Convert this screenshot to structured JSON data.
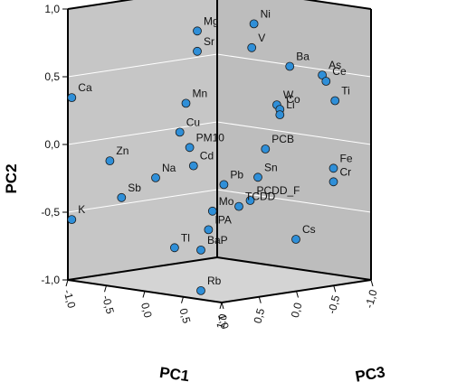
{
  "chart_data": {
    "type": "scatter",
    "projection": "3d",
    "axes": {
      "x": {
        "label": "PC1",
        "range": [
          -1,
          1
        ],
        "ticks": [
          "-1,0",
          "-0,5",
          "0,0",
          "0,5",
          "1,0"
        ]
      },
      "y": {
        "label": "PC2",
        "range": [
          -1,
          1
        ],
        "ticks": [
          "-1,0",
          "-0,5",
          "0,0",
          "0,5",
          "1,0"
        ]
      },
      "z": {
        "label": "PC3",
        "range": [
          -1,
          1
        ],
        "ticks": [
          "1,0",
          "0,5",
          "0,0",
          "-0,5",
          "-1,0"
        ]
      }
    },
    "grid": true,
    "colors": {
      "point": "#2f8fd8",
      "wall": "#c6c6c6",
      "wall_right": "#bdbdbd",
      "floor": "#d4d4d4",
      "gridline": "#ffffff"
    },
    "points": [
      {
        "label": "Mg",
        "pc1": 0.1,
        "pc2": 0.88,
        "pc3": 0.4
      },
      {
        "label": "Sr",
        "pc1": 0.1,
        "pc2": 0.73,
        "pc3": 0.4
      },
      {
        "label": "Ni",
        "pc1": 0.4,
        "pc2": 0.92,
        "pc3": -0.05
      },
      {
        "label": "V",
        "pc1": 0.42,
        "pc2": 0.75,
        "pc3": 0.0
      },
      {
        "label": "Ca",
        "pc1": -0.95,
        "pc2": 0.35,
        "pc3": 1.0
      },
      {
        "label": "Mn",
        "pc1": 0.05,
        "pc2": 0.35,
        "pc3": 0.5
      },
      {
        "label": "Ba",
        "pc1": 0.72,
        "pc2": 0.62,
        "pc3": -0.2
      },
      {
        "label": "As",
        "pc1": 0.9,
        "pc2": 0.55,
        "pc3": -0.45
      },
      {
        "label": "Cu",
        "pc1": -0.03,
        "pc2": 0.13,
        "pc3": 0.5
      },
      {
        "label": "Zn",
        "pc1": -0.6,
        "pc2": -0.1,
        "pc3": 0.85
      },
      {
        "label": "W",
        "pc1": 0.6,
        "pc2": 0.33,
        "pc3": -0.15
      },
      {
        "label": "Co",
        "pc1": 0.64,
        "pc2": 0.3,
        "pc3": -0.15
      },
      {
        "label": "Ce",
        "pc1": 0.9,
        "pc2": 0.5,
        "pc3": -0.5
      },
      {
        "label": "Li",
        "pc1": 0.64,
        "pc2": 0.26,
        "pc3": -0.15
      },
      {
        "label": "Ti",
        "pc1": 0.92,
        "pc2": 0.35,
        "pc3": -0.6
      },
      {
        "label": "PM10",
        "pc1": 0.05,
        "pc2": 0.02,
        "pc3": 0.45
      },
      {
        "label": "Na",
        "pc1": -0.15,
        "pc2": -0.2,
        "pc3": 0.7
      },
      {
        "label": "PCB",
        "pc1": 0.5,
        "pc2": 0.0,
        "pc3": -0.1
      },
      {
        "label": "K",
        "pc1": -0.95,
        "pc2": -0.55,
        "pc3": 1.0
      },
      {
        "label": "Sb",
        "pc1": -0.4,
        "pc2": -0.35,
        "pc3": 0.9
      },
      {
        "label": "Cd",
        "pc1": 0.05,
        "pc2": -0.12,
        "pc3": 0.4
      },
      {
        "label": "Pb",
        "pc1": 0.3,
        "pc2": -0.25,
        "pc3": 0.25
      },
      {
        "label": "Sn",
        "pc1": 0.5,
        "pc2": -0.2,
        "pc3": 0.0
      },
      {
        "label": "Fe",
        "pc1": 0.9,
        "pc2": -0.15,
        "pc3": -0.6
      },
      {
        "label": "Mo",
        "pc1": 0.2,
        "pc2": -0.45,
        "pc3": 0.3
      },
      {
        "label": "Cr",
        "pc1": 0.9,
        "pc2": -0.25,
        "pc3": -0.6
      },
      {
        "label": "PCDD_F",
        "pc1": 0.4,
        "pc2": -0.38,
        "pc3": 0.0
      },
      {
        "label": "TCDD",
        "pc1": 0.35,
        "pc2": -0.42,
        "pc3": 0.1
      },
      {
        "label": "Tl",
        "pc1": -0.05,
        "pc2": -0.72,
        "pc3": 0.55
      },
      {
        "label": "IPA",
        "pc1": 0.1,
        "pc2": -0.6,
        "pc3": 0.25
      },
      {
        "label": "Cs",
        "pc1": 0.8,
        "pc2": -0.65,
        "pc3": -0.2
      },
      {
        "label": "BaP",
        "pc1": 0.05,
        "pc2": -0.75,
        "pc3": 0.3
      },
      {
        "label": "Rb",
        "pc1": 0.05,
        "pc2": -1.05,
        "pc3": 0.3
      }
    ]
  }
}
